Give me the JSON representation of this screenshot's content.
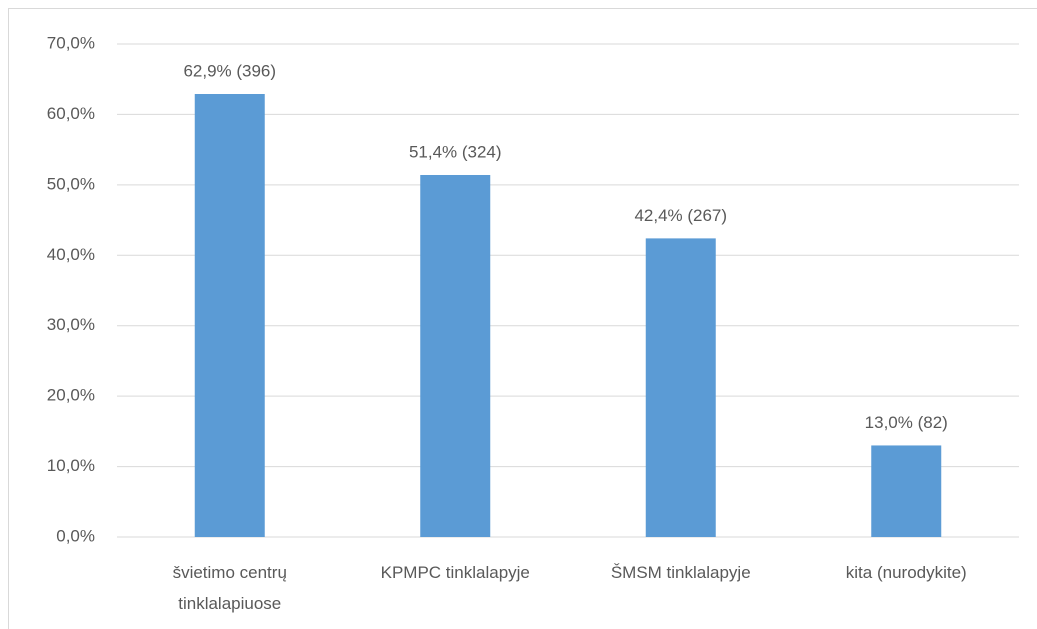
{
  "chart_data": {
    "type": "bar",
    "categories": [
      "švietimo centrų tinklalapiuose",
      "KPMPC tinklalapyje",
      "ŠMSM tinklalapyje",
      "kita (nurodykite)"
    ],
    "values": [
      62.9,
      51.4,
      42.4,
      13.0
    ],
    "value_labels": [
      "62,9% (396)",
      "51,4% (324)",
      "42,4% (267)",
      "13,0% (82)"
    ],
    "color": "#5b9bd5",
    "ylim": [
      0,
      70
    ],
    "yticks": [
      {
        "value": 0,
        "label": "0,0%"
      },
      {
        "value": 10,
        "label": "10,0%"
      },
      {
        "value": 20,
        "label": "20,0%"
      },
      {
        "value": 30,
        "label": "30,0%"
      },
      {
        "value": 40,
        "label": "40,0%"
      },
      {
        "value": 50,
        "label": "50,0%"
      },
      {
        "value": 60,
        "label": "60,0%"
      },
      {
        "value": 70,
        "label": "70,0%"
      }
    ],
    "grid": true
  }
}
